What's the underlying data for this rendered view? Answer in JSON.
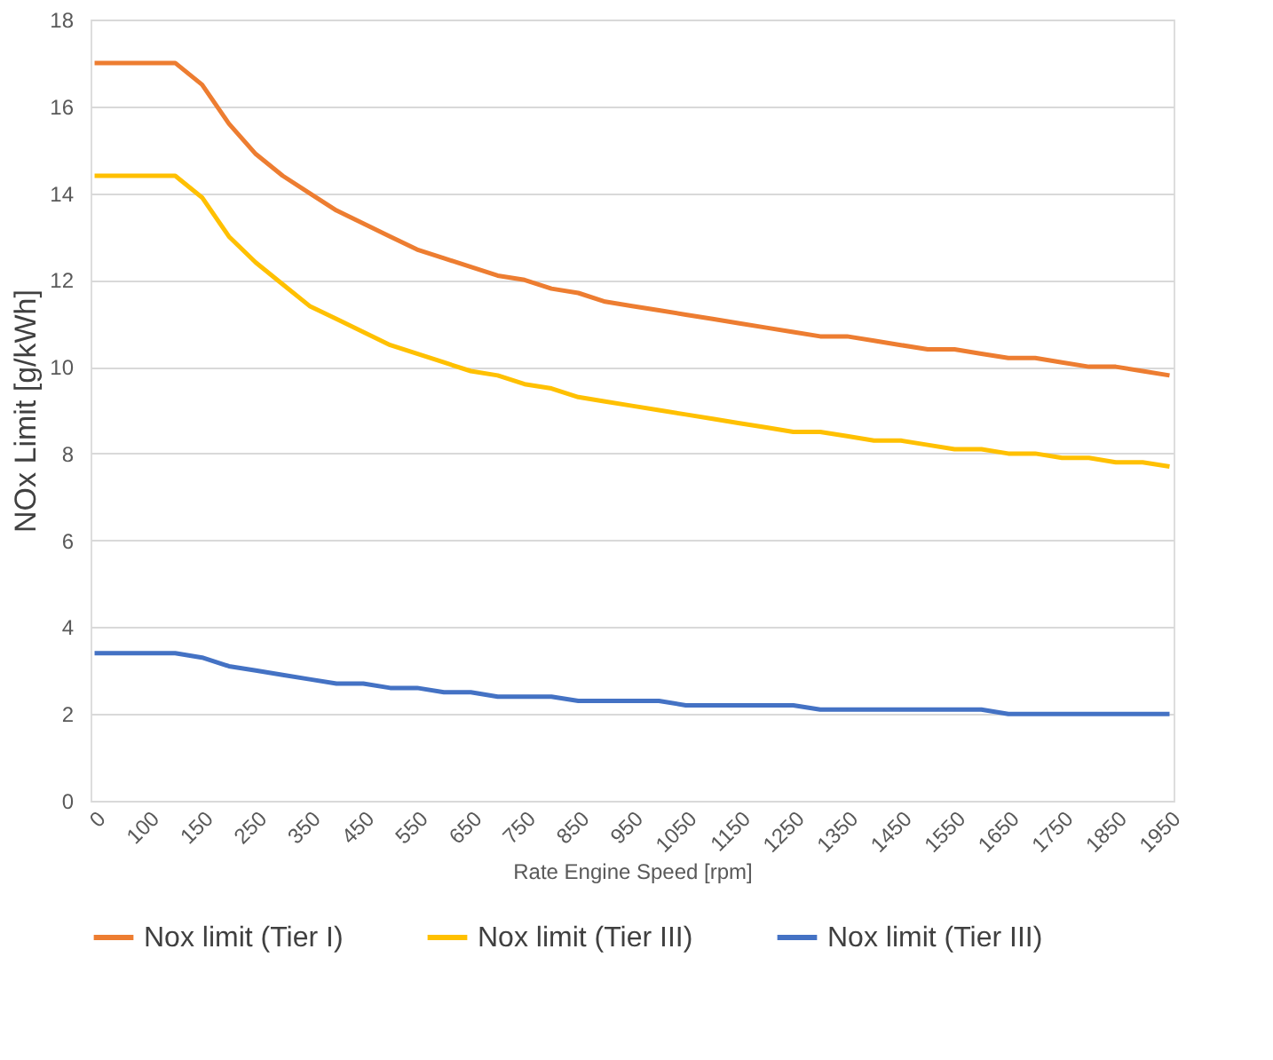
{
  "chart_data": {
    "type": "line",
    "xlabel": "Rate Engine Speed [rpm]",
    "ylabel": "NOx Limit [g/kWh]",
    "categories": [
      "0",
      null,
      "100",
      null,
      "150",
      null,
      "250",
      null,
      "350",
      null,
      "450",
      null,
      "550",
      null,
      "650",
      null,
      "750",
      null,
      "850",
      null,
      "950",
      null,
      "1050",
      null,
      "1150",
      null,
      "1250",
      null,
      "1350",
      null,
      "1450",
      null,
      "1550",
      null,
      "1650",
      null,
      "1750",
      null,
      "1850",
      null,
      "1950"
    ],
    "series": [
      {
        "name": "Nox limit (Tier I)",
        "color": "#ed7d31",
        "values": [
          17,
          17,
          17,
          17,
          16.5,
          15.6,
          14.9,
          14.4,
          14.0,
          13.6,
          13.3,
          13.0,
          12.7,
          12.5,
          12.3,
          12.1,
          12.0,
          11.8,
          11.7,
          11.5,
          11.4,
          11.3,
          11.2,
          11.1,
          11.0,
          10.9,
          10.8,
          10.7,
          10.7,
          10.6,
          10.5,
          10.4,
          10.4,
          10.3,
          10.2,
          10.2,
          10.1,
          10.0,
          10.0,
          9.9,
          9.8
        ]
      },
      {
        "name": "Nox limit (Tier III)",
        "color": "#ffc000",
        "values": [
          14.4,
          14.4,
          14.4,
          14.4,
          13.9,
          13.0,
          12.4,
          11.9,
          11.4,
          11.1,
          10.8,
          10.5,
          10.3,
          10.1,
          9.9,
          9.8,
          9.6,
          9.5,
          9.3,
          9.2,
          9.1,
          9.0,
          8.9,
          8.8,
          8.7,
          8.6,
          8.5,
          8.5,
          8.4,
          8.3,
          8.3,
          8.2,
          8.1,
          8.1,
          8.0,
          8.0,
          7.9,
          7.9,
          7.8,
          7.8,
          7.7
        ]
      },
      {
        "name": "Nox limit (Tier III)",
        "color": "#4472c4",
        "values": [
          3.4,
          3.4,
          3.4,
          3.4,
          3.3,
          3.1,
          3.0,
          2.9,
          2.8,
          2.7,
          2.7,
          2.6,
          2.6,
          2.5,
          2.5,
          2.4,
          2.4,
          2.4,
          2.3,
          2.3,
          2.3,
          2.3,
          2.2,
          2.2,
          2.2,
          2.2,
          2.2,
          2.1,
          2.1,
          2.1,
          2.1,
          2.1,
          2.1,
          2.1,
          2.0,
          2.0,
          2.0,
          2.0,
          2.0,
          2.0,
          2.0
        ]
      }
    ],
    "ylim": [
      0,
      18
    ],
    "yticks": [
      0,
      2,
      4,
      6,
      8,
      10,
      12,
      14,
      16,
      18
    ],
    "grid": "y",
    "legend": "bottom",
    "line_style": "solid",
    "marker": "none"
  }
}
